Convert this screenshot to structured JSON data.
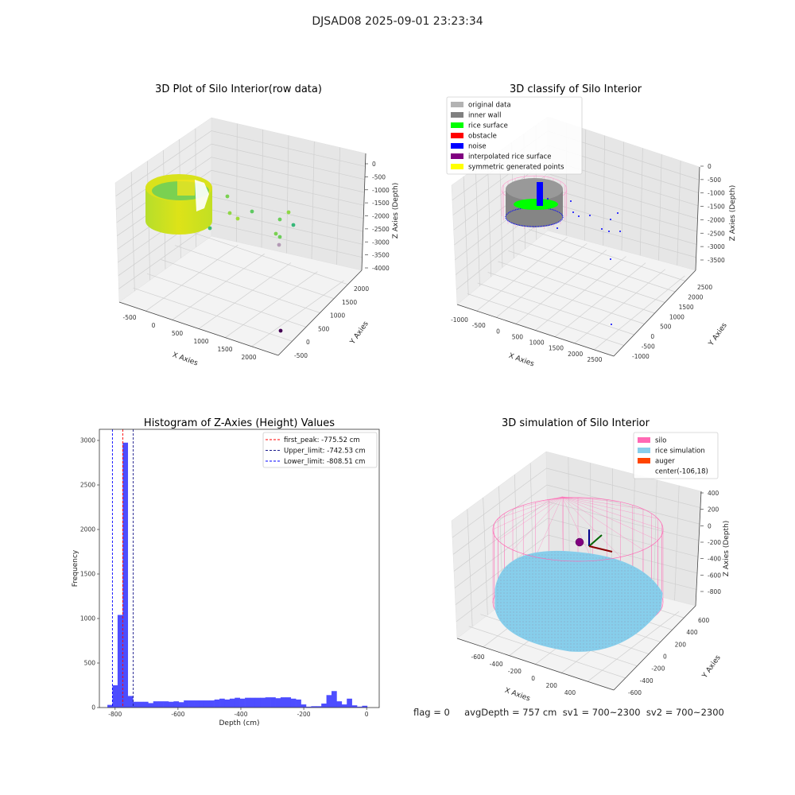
{
  "figure": {
    "suptitle": "DJSAD08 2025-09-01 23:23:34",
    "footer": "flag = 0     avgDepth = 757 cm  sv1 = 700~2300  sv2 = 700~2300"
  },
  "chart_data": [
    {
      "type": "scatter",
      "projection": "3d",
      "title": "3D Plot of Silo Interior(row data)",
      "xlabel": "X Axies",
      "ylabel": "Y Axies",
      "zlabel": "Z Axies (Depth)",
      "xticks": [
        "-500",
        "0",
        "500",
        "1000",
        "1500",
        "2000"
      ],
      "yticks": [
        "-500",
        "0",
        "500",
        "1000",
        "1500",
        "2000"
      ],
      "zticks": [
        "0",
        "-500",
        "-1000",
        "-1500",
        "-2000",
        "-2500",
        "-3000",
        "-3500",
        "-4000"
      ],
      "colormap": "viridis",
      "grid": true
    },
    {
      "type": "scatter",
      "projection": "3d",
      "title": "3D classify of Silo Interior",
      "xlabel": "X Axies",
      "ylabel": "Y Axies",
      "zlabel": "Z Axies (Depth)",
      "xticks": [
        "-1000",
        "-500",
        "0",
        "500",
        "1000",
        "1500",
        "2000",
        "2500"
      ],
      "yticks": [
        "-1000",
        "-500",
        "0",
        "500",
        "1000",
        "1500",
        "2000",
        "2500"
      ],
      "zticks": [
        "0",
        "-500",
        "-1000",
        "-1500",
        "-2000",
        "-2500",
        "-3000",
        "-3500"
      ],
      "legend": [
        {
          "label": "original data",
          "color": "#b3b3b3"
        },
        {
          "label": "inner wall",
          "color": "#808080"
        },
        {
          "label": "rice surface",
          "color": "#00ff00"
        },
        {
          "label": "obstacle",
          "color": "#ff0000"
        },
        {
          "label": "noise",
          "color": "#0000ff"
        },
        {
          "label": "interpolated rice surface",
          "color": "#800080"
        },
        {
          "label": "symmetric generated points",
          "color": "#ffff00"
        }
      ],
      "legend_loc": "top-right",
      "grid": true
    },
    {
      "type": "bar",
      "subtype": "histogram",
      "title": "Histogram of Z-Axies (Height) Values",
      "xlabel": "Depth (cm)",
      "ylabel": "Frequency",
      "bin_start": -824.5,
      "bin_width": 16.2,
      "values": [
        30,
        250,
        1040,
        2975,
        130,
        65,
        65,
        65,
        50,
        70,
        70,
        70,
        65,
        70,
        60,
        80,
        80,
        80,
        80,
        80,
        80,
        90,
        100,
        90,
        100,
        110,
        100,
        110,
        110,
        110,
        110,
        115,
        115,
        105,
        115,
        115,
        100,
        90,
        35,
        10,
        15,
        15,
        45,
        140,
        185,
        70,
        35,
        100,
        25,
        10,
        20
      ],
      "bar_color": "#4d4dff",
      "xticks": [
        "-800",
        "-600",
        "-400",
        "-200",
        "0"
      ],
      "xtick_values": [
        -800,
        -600,
        -400,
        -200,
        0
      ],
      "yticks": [
        "0",
        "500",
        "1000",
        "1500",
        "2000",
        "2500",
        "3000"
      ],
      "ytick_values": [
        0,
        500,
        1000,
        1500,
        2000,
        2500,
        3000
      ],
      "xlim": [
        -850,
        40
      ],
      "ylim": [
        0,
        3125
      ],
      "vlines": [
        {
          "label": "first_peak: -775.52 cm",
          "value": -775.52,
          "color": "#ff0000"
        },
        {
          "label": "Upper_limit: -742.53 cm",
          "value": -742.53,
          "color": "#1a1a8c"
        },
        {
          "label": "Lower_limit: -808.51 cm",
          "value": -808.51,
          "color": "#0000ff"
        }
      ],
      "legend_loc": "top-right",
      "grid": false
    },
    {
      "type": "scatter",
      "projection": "3d",
      "title": "3D simulation of Silo Interior",
      "xlabel": "X Axies",
      "ylabel": "Y Axies",
      "zlabel": "Z Axies (Depth)",
      "xticks": [
        "-600",
        "-400",
        "-200",
        "0",
        "200",
        "400"
      ],
      "yticks": [
        "-600",
        "-400",
        "-200",
        "0",
        "200",
        "400",
        "600"
      ],
      "zticks": [
        "400",
        "200",
        "0",
        "-200",
        "-400",
        "-600",
        "-800"
      ],
      "legend": [
        {
          "label": "silo",
          "color": "#ff69b4"
        },
        {
          "label": "rice simulation",
          "color": "#87ceeb"
        },
        {
          "label": "auger",
          "color": "#ff4500"
        },
        {
          "label": "center(-106,18)",
          "color": null
        }
      ],
      "legend_loc": "top-right",
      "grid": true
    }
  ]
}
